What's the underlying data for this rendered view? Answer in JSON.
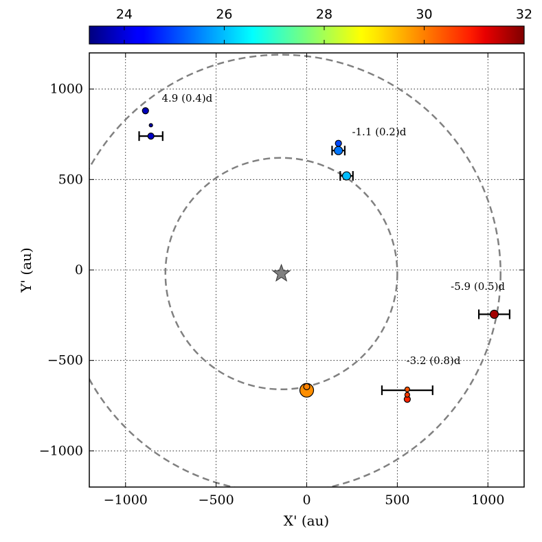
{
  "chart_data": {
    "type": "scatter",
    "title": "",
    "xlabel": "X' (au)",
    "ylabel": "Y' (au)",
    "xlim": [
      -1200,
      1200
    ],
    "ylim": [
      -1200,
      1200
    ],
    "xticks": [
      -1000,
      -500,
      0,
      500,
      1000
    ],
    "yticks": [
      -1000,
      -500,
      0,
      500,
      1000
    ],
    "xtick_labels": [
      "−1000",
      "−500",
      "0",
      "500",
      "1000"
    ],
    "ytick_labels": [
      "−1000",
      "−500",
      "0",
      "500",
      "1000"
    ],
    "grid": true,
    "colorbar": {
      "orientation": "horizontal",
      "position": "top",
      "colormap": "jet",
      "range": [
        23.3,
        32
      ],
      "ticks": [
        24,
        26,
        28,
        30,
        32
      ],
      "tick_labels": [
        "24",
        "26",
        "28",
        "30",
        "32"
      ]
    },
    "star": {
      "x": -140,
      "y": -20,
      "color": "#808080"
    },
    "orbits": [
      {
        "cx": -140,
        "cy": -20,
        "r": 640,
        "style": "dashed",
        "color": "#808080"
      },
      {
        "cx": -140,
        "cy": -20,
        "r": 1210,
        "style": "dashed",
        "color": "#808080"
      }
    ],
    "points": [
      {
        "x": -890,
        "y": 880,
        "c": 23.8,
        "size": 4.5
      },
      {
        "x": -860,
        "y": 800,
        "c": 23.6,
        "size": 2.5
      },
      {
        "x": -860,
        "y": 740,
        "c": 23.9,
        "size": 4.5
      },
      {
        "x": 175,
        "y": 700,
        "c": 25.0,
        "size": 4.5
      },
      {
        "x": 175,
        "y": 660,
        "c": 25.4,
        "size": 6
      },
      {
        "x": 220,
        "y": 520,
        "c": 26.0,
        "size": 6
      },
      {
        "x": 1035,
        "y": -245,
        "c": 31.7,
        "size": 6
      },
      {
        "x": 0,
        "y": -665,
        "c": 29.7,
        "size": 10
      },
      {
        "x": 0,
        "y": -645,
        "c": 29.8,
        "size": 4.5
      },
      {
        "x": 555,
        "y": -660,
        "c": 30.2,
        "size": 3.5
      },
      {
        "x": 555,
        "y": -690,
        "c": 30.4,
        "size": 3.5
      },
      {
        "x": 555,
        "y": -715,
        "c": 30.6,
        "size": 4.5
      }
    ],
    "errorbars": [
      {
        "x": -860,
        "y": 740,
        "xerr": 65
      },
      {
        "x": 175,
        "y": 660,
        "xerr": 35
      },
      {
        "x": 220,
        "y": 520,
        "xerr": 35
      },
      {
        "x": 1035,
        "y": -245,
        "xerr": 85
      },
      {
        "x": 555,
        "y": -665,
        "xerr": 140
      }
    ],
    "annotations": [
      {
        "text": "4.9 (0.4)d",
        "x": -800,
        "y": 930
      },
      {
        "text": "-1.1 (0.2)d",
        "x": 250,
        "y": 745
      },
      {
        "text": "-5.9 (0.5)d",
        "x": 795,
        "y": -110
      },
      {
        "text": "-3.2 (0.8)d",
        "x": 550,
        "y": -520
      }
    ]
  }
}
